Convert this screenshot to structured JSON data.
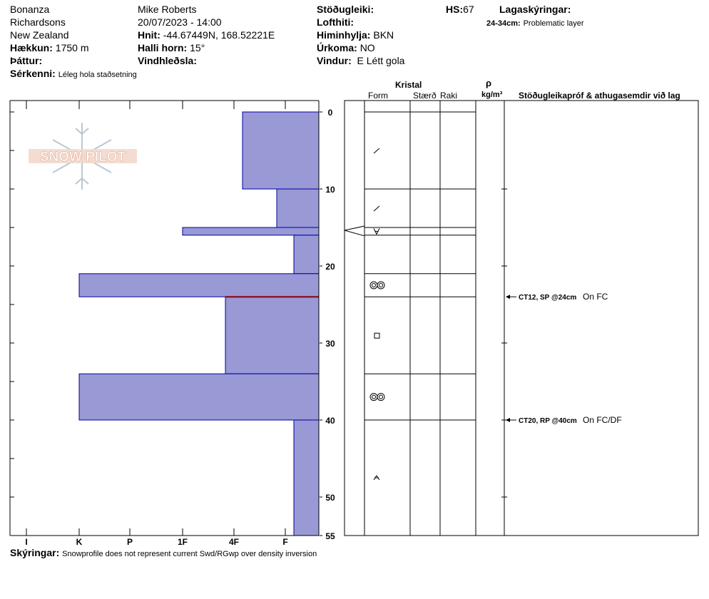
{
  "header": {
    "location": "Bonanza",
    "range": "Richardsons",
    "country": "New Zealand",
    "elevation_label": "Hækkun:",
    "elevation_value": "1750 m",
    "aspect_label": "Þáttur:",
    "features_label": "Sérkenni:",
    "features_value": "Léleg hola staðsetning",
    "observer": "Mike Roberts",
    "datetime": "20/07/2023 - 14:00",
    "coords_label": "Hnit:",
    "coords_value": "-44.67449N, 168.52221E",
    "slope_label": "Halli horn:",
    "slope_value": "15°",
    "wind_loading_label": "Vindhleðsla:",
    "stability_label": "Stöðugleiki:",
    "air_temp_label": "Lofthiti:",
    "sky_label": "Himinhylja:",
    "sky_value": "BKN",
    "precip_label": "Úrkoma:",
    "precip_value": "NO",
    "wind_label": "Vindur:",
    "wind_value": "E Létt gola",
    "hs_label": "HS:",
    "hs_value": "67",
    "layer_notes_label": "Lagaskýringar:",
    "layer_note_range": "24-34cm:",
    "layer_note_text": "Problematic layer"
  },
  "columns": {
    "crystal": "Kristal",
    "form": "Form",
    "size": "Stærð",
    "moisture": "Raki",
    "rho": "ρ",
    "density_unit": "kg/m³",
    "tests_header": "Stöðugleikapróf & athugasemdir við lag"
  },
  "logo_text": "SNOW PILOT",
  "footer": {
    "label": "Skýringar:",
    "text": "Snowprofile does not represent current Swd/RGwp over density inversion"
  },
  "chart_data": {
    "type": "bar",
    "orientation": "horizontal",
    "x_label_type": "hand hardness",
    "hardness_ticks": [
      "I",
      "K",
      "P",
      "1F",
      "4F",
      "F"
    ],
    "depth_ticks": [
      "0",
      "10",
      "20",
      "30",
      "40",
      "50",
      "55"
    ],
    "depth_range_cm": [
      0,
      55
    ],
    "layers": [
      {
        "top": 0,
        "bottom": 10,
        "hardness": "4F-"
      },
      {
        "top": 10,
        "bottom": 15,
        "hardness": "F+"
      },
      {
        "top": 15,
        "bottom": 16,
        "hardness": "1F"
      },
      {
        "top": 16,
        "bottom": 21,
        "hardness": "F-"
      },
      {
        "top": 21,
        "bottom": 24,
        "hardness": "K"
      },
      {
        "top": 24,
        "bottom": 34,
        "hardness": "4F+"
      },
      {
        "top": 34,
        "bottom": 40,
        "hardness": "K"
      },
      {
        "top": 40,
        "bottom": 55,
        "hardness": "F-"
      }
    ],
    "bar_color": "#9999d6",
    "bar_edge": "#0000a0",
    "problem_line_depth": 24,
    "problem_line_color": "#8b1a2b",
    "form_symbols": [
      {
        "depth": 5,
        "symbol": "decomposing"
      },
      {
        "depth": 12.5,
        "symbol": "decomposing"
      },
      {
        "depth": 15.5,
        "symbol": "surface-hoar"
      },
      {
        "depth": 22.5,
        "symbol": "melt-forms"
      },
      {
        "depth": 29,
        "symbol": "faceted"
      },
      {
        "depth": 37,
        "symbol": "melt-forms"
      },
      {
        "depth": 47.5,
        "symbol": "depth-hoar"
      }
    ],
    "stability_tests": [
      {
        "depth": 24,
        "label": "CT12, SP @24cm",
        "note": "On FC"
      },
      {
        "depth": 40,
        "label": "CT20, RP @40cm",
        "note": "On FC/DF"
      }
    ]
  }
}
